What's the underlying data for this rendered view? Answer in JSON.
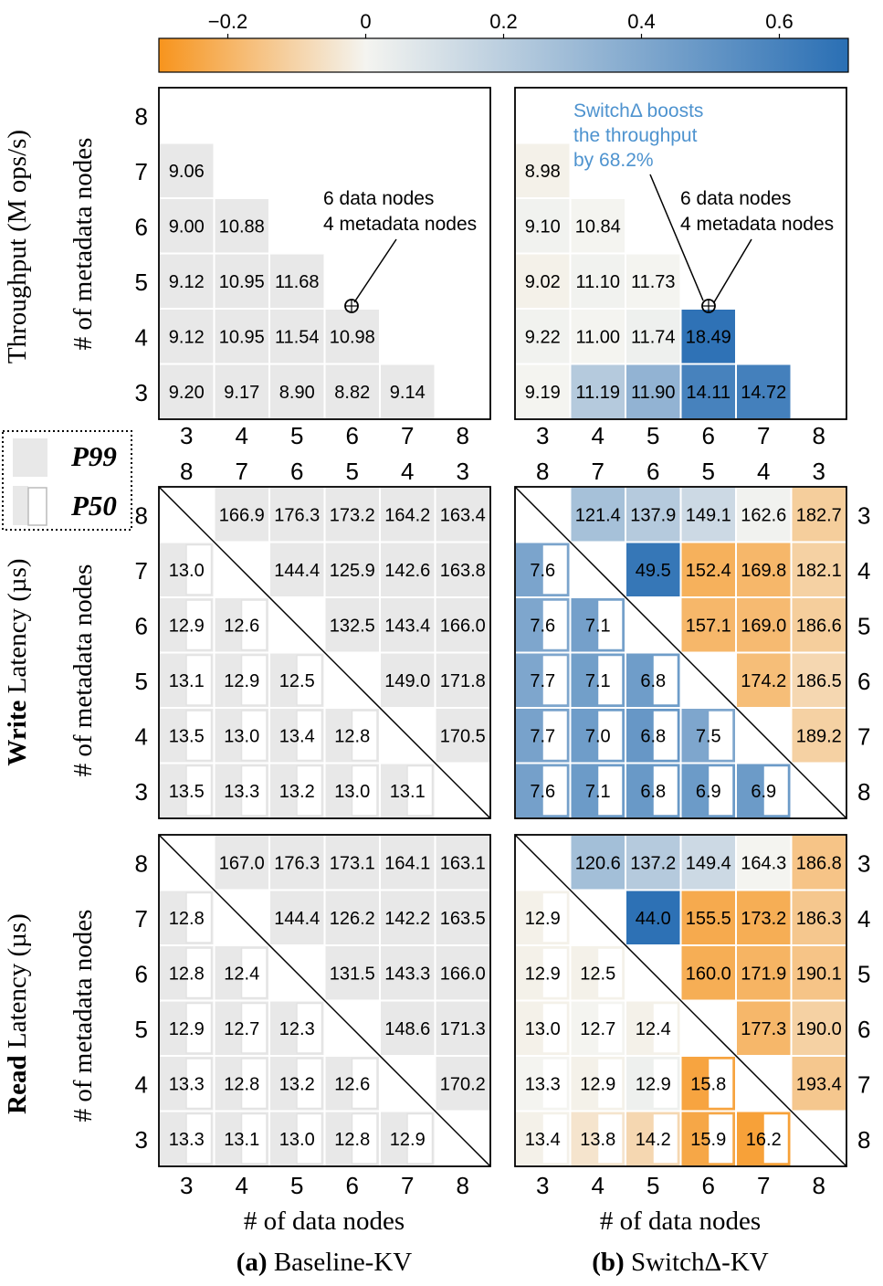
{
  "colorbar": {
    "ticks": [
      {
        "value": -0.2,
        "label": "−0.2"
      },
      {
        "value": 0,
        "label": "0"
      },
      {
        "value": 0.2,
        "label": "0.2"
      },
      {
        "value": 0.4,
        "label": "0.4"
      },
      {
        "value": 0.6,
        "label": "0.6"
      }
    ],
    "vmin": -0.3,
    "vmax": 0.7,
    "colors": {
      "negative": "#f7941d",
      "zero": "#f4f4f0",
      "positive": "#2a6fb4"
    }
  },
  "row_titles": {
    "throughput_plain": "Throughput (M ops/s)",
    "write_bold": "Write",
    "write_rest": " Latency (µs)",
    "read_bold": "Read",
    "read_rest": " Latency (µs)"
  },
  "y_axis_label": "# of metadata nodes",
  "x_axis_label": "# of data nodes",
  "legend": {
    "p99": "P99",
    "p50": "P50"
  },
  "panel_captions": {
    "a_letter": "(a)",
    "a_name": " Baseline-KV",
    "b_letter": "(b)",
    "b_name": " SwitchΔ-KV"
  },
  "annotations": {
    "config_line1": "6 data nodes",
    "config_line2": "4 metadata nodes",
    "boost_line1": "SwitchΔ boosts",
    "boost_line2": "the throughput",
    "boost_line3": "by 68.2%"
  },
  "neutral_color": "#e8e8e8",
  "chart_data": [
    {
      "type": "heatmap",
      "title": "Throughput (M ops/s)",
      "panel": "(a) Baseline-KV",
      "xlabel": "# of data nodes",
      "ylabel": "# of metadata nodes",
      "x": [
        3,
        4,
        5,
        6,
        7,
        8
      ],
      "y": [
        3,
        4,
        5,
        6,
        7,
        8
      ],
      "values": [
        [
          9.2,
          9.17,
          8.9,
          8.82,
          9.14,
          null
        ],
        [
          9.12,
          10.95,
          11.54,
          10.98,
          null,
          null
        ],
        [
          9.12,
          10.95,
          11.68,
          null,
          null,
          null
        ],
        [
          9.0,
          10.88,
          null,
          null,
          null,
          null
        ],
        [
          9.06,
          null,
          null,
          null,
          null,
          null
        ],
        [
          null,
          null,
          null,
          null,
          null,
          null
        ]
      ]
    },
    {
      "type": "heatmap",
      "title": "Throughput (M ops/s)",
      "panel": "(b) SwitchΔ-KV",
      "xlabel": "# of data nodes",
      "ylabel": "# of metadata nodes",
      "x": [
        3,
        4,
        5,
        6,
        7,
        8
      ],
      "y": [
        3,
        4,
        5,
        6,
        7,
        8
      ],
      "values": [
        [
          9.19,
          11.19,
          11.9,
          14.11,
          14.72,
          null
        ],
        [
          9.22,
          11.0,
          11.74,
          18.49,
          null,
          null
        ],
        [
          9.02,
          11.1,
          11.73,
          null,
          null,
          null
        ],
        [
          9.1,
          10.84,
          null,
          null,
          null,
          null
        ],
        [
          8.98,
          null,
          null,
          null,
          null,
          null
        ],
        [
          null,
          null,
          null,
          null,
          null,
          null
        ]
      ],
      "relative_change": [
        [
          0.0,
          0.22,
          0.34,
          0.6,
          0.61,
          null
        ],
        [
          0.01,
          0.0,
          0.02,
          0.682,
          null,
          null
        ],
        [
          -0.01,
          0.01,
          0.0,
          null,
          null,
          null
        ],
        [
          0.01,
          0.0,
          null,
          null,
          null,
          null
        ],
        [
          -0.01,
          null,
          null,
          null,
          null,
          null
        ],
        [
          null,
          null,
          null,
          null,
          null,
          null
        ]
      ]
    },
    {
      "type": "heatmap",
      "title": "Write Latency (µs)",
      "panel": "(a) Baseline-KV",
      "x_top": [
        3,
        4,
        5,
        6,
        7,
        8
      ],
      "x_bottom": [
        8,
        7,
        6,
        5,
        4,
        3
      ],
      "y_left": [
        3,
        4,
        5,
        6,
        7,
        8
      ],
      "y_right": [
        8,
        7,
        6,
        5,
        4,
        3
      ],
      "p50_lower": [
        [
          13.5,
          13.3,
          13.2,
          13.0,
          13.1,
          null
        ],
        [
          13.5,
          13.0,
          13.4,
          12.8,
          null,
          null
        ],
        [
          13.1,
          12.9,
          12.5,
          null,
          null,
          null
        ],
        [
          12.9,
          12.6,
          null,
          null,
          null,
          null
        ],
        [
          13.0,
          null,
          null,
          null,
          null,
          null
        ],
        [
          null,
          null,
          null,
          null,
          null,
          null
        ]
      ],
      "p99_upper": [
        [
          null,
          166.9,
          176.3,
          173.2,
          164.2,
          163.4
        ],
        [
          null,
          null,
          144.4,
          125.9,
          142.6,
          163.8
        ],
        [
          null,
          null,
          null,
          132.5,
          143.4,
          166.0
        ],
        [
          null,
          null,
          null,
          null,
          149.0,
          171.8
        ],
        [
          null,
          null,
          null,
          null,
          null,
          170.5
        ]
      ]
    },
    {
      "type": "heatmap",
      "title": "Write Latency (µs)",
      "panel": "(b) SwitchΔ-KV",
      "p50_lower": [
        [
          7.6,
          7.1,
          6.8,
          6.9,
          6.9,
          null
        ],
        [
          7.7,
          7.0,
          6.8,
          7.5,
          null,
          null
        ],
        [
          7.7,
          7.1,
          6.8,
          null,
          null,
          null
        ],
        [
          7.6,
          7.1,
          null,
          null,
          null,
          null
        ],
        [
          7.6,
          null,
          null,
          null,
          null,
          null
        ],
        [
          null,
          null,
          null,
          null,
          null,
          null
        ]
      ],
      "p50_change": [
        [
          0.44,
          0.47,
          0.48,
          0.47,
          0.47,
          null
        ],
        [
          0.43,
          0.46,
          0.49,
          0.41,
          null,
          null
        ],
        [
          0.41,
          0.45,
          0.46,
          null,
          null,
          null
        ],
        [
          0.41,
          0.44,
          null,
          null,
          null,
          null
        ],
        [
          0.42,
          null,
          null,
          null,
          null,
          null
        ],
        [
          null,
          null,
          null,
          null,
          null,
          null
        ]
      ],
      "p99_upper": [
        [
          null,
          121.4,
          137.9,
          149.1,
          162.6,
          182.7
        ],
        [
          null,
          null,
          49.5,
          152.4,
          169.8,
          182.1
        ],
        [
          null,
          null,
          null,
          157.1,
          169.0,
          186.6
        ],
        [
          null,
          null,
          null,
          null,
          174.2,
          186.5
        ],
        [
          null,
          null,
          null,
          null,
          null,
          189.2
        ]
      ],
      "p99_change": [
        [
          null,
          0.27,
          0.22,
          0.14,
          0.01,
          -0.12
        ],
        [
          null,
          null,
          0.66,
          -0.21,
          -0.19,
          -0.11
        ],
        [
          null,
          null,
          null,
          -0.19,
          -0.18,
          -0.12
        ],
        [
          null,
          null,
          null,
          null,
          -0.17,
          -0.09
        ],
        [
          null,
          null,
          null,
          null,
          null,
          -0.11
        ]
      ]
    },
    {
      "type": "heatmap",
      "title": "Read Latency (µs)",
      "panel": "(a) Baseline-KV",
      "p50_lower": [
        [
          13.3,
          13.1,
          13.0,
          12.8,
          12.9,
          null
        ],
        [
          13.3,
          12.8,
          13.2,
          12.6,
          null,
          null
        ],
        [
          12.9,
          12.7,
          12.3,
          null,
          null,
          null
        ],
        [
          12.8,
          12.4,
          null,
          null,
          null,
          null
        ],
        [
          12.8,
          null,
          null,
          null,
          null,
          null
        ],
        [
          null,
          null,
          null,
          null,
          null,
          null
        ]
      ],
      "p99_upper": [
        [
          null,
          167.0,
          176.3,
          173.1,
          164.1,
          163.1
        ],
        [
          null,
          null,
          144.4,
          126.2,
          142.2,
          163.5
        ],
        [
          null,
          null,
          null,
          131.5,
          143.3,
          166.0
        ],
        [
          null,
          null,
          null,
          null,
          148.6,
          171.3
        ],
        [
          null,
          null,
          null,
          null,
          null,
          170.2
        ]
      ]
    },
    {
      "type": "heatmap",
      "title": "Read Latency (µs)",
      "panel": "(b) SwitchΔ-KV",
      "p50_lower": [
        [
          13.4,
          13.8,
          14.2,
          15.9,
          16.2,
          null
        ],
        [
          13.3,
          12.9,
          12.9,
          15.8,
          null,
          null
        ],
        [
          13.0,
          12.7,
          12.4,
          null,
          null,
          null
        ],
        [
          12.9,
          12.5,
          null,
          null,
          null,
          null
        ],
        [
          12.9,
          null,
          null,
          null,
          null,
          null
        ],
        [
          null,
          null,
          null,
          null,
          null,
          null
        ]
      ],
      "p50_change": [
        [
          -0.01,
          -0.05,
          -0.09,
          -0.24,
          -0.26,
          null
        ],
        [
          0.0,
          -0.01,
          0.02,
          -0.25,
          null,
          null
        ],
        [
          -0.01,
          0.0,
          -0.01,
          null,
          null,
          null
        ],
        [
          -0.01,
          -0.01,
          null,
          null,
          null,
          null
        ],
        [
          -0.01,
          null,
          null,
          null,
          null,
          null
        ],
        [
          null,
          null,
          null,
          null,
          null,
          null
        ]
      ],
      "p99_upper": [
        [
          null,
          120.6,
          137.2,
          149.4,
          164.3,
          186.8
        ],
        [
          null,
          null,
          44.0,
          155.5,
          173.2,
          186.3
        ],
        [
          null,
          null,
          null,
          160.0,
          171.9,
          190.1
        ],
        [
          null,
          null,
          null,
          null,
          177.3,
          190.0
        ],
        [
          null,
          null,
          null,
          null,
          null,
          193.4
        ]
      ],
      "p99_change": [
        [
          null,
          0.28,
          0.22,
          0.14,
          0.0,
          -0.15
        ],
        [
          null,
          null,
          0.69,
          -0.23,
          -0.22,
          -0.14
        ],
        [
          null,
          null,
          null,
          -0.22,
          -0.2,
          -0.15
        ],
        [
          null,
          null,
          null,
          null,
          -0.19,
          -0.11
        ],
        [
          null,
          null,
          null,
          null,
          null,
          -0.14
        ]
      ]
    }
  ]
}
